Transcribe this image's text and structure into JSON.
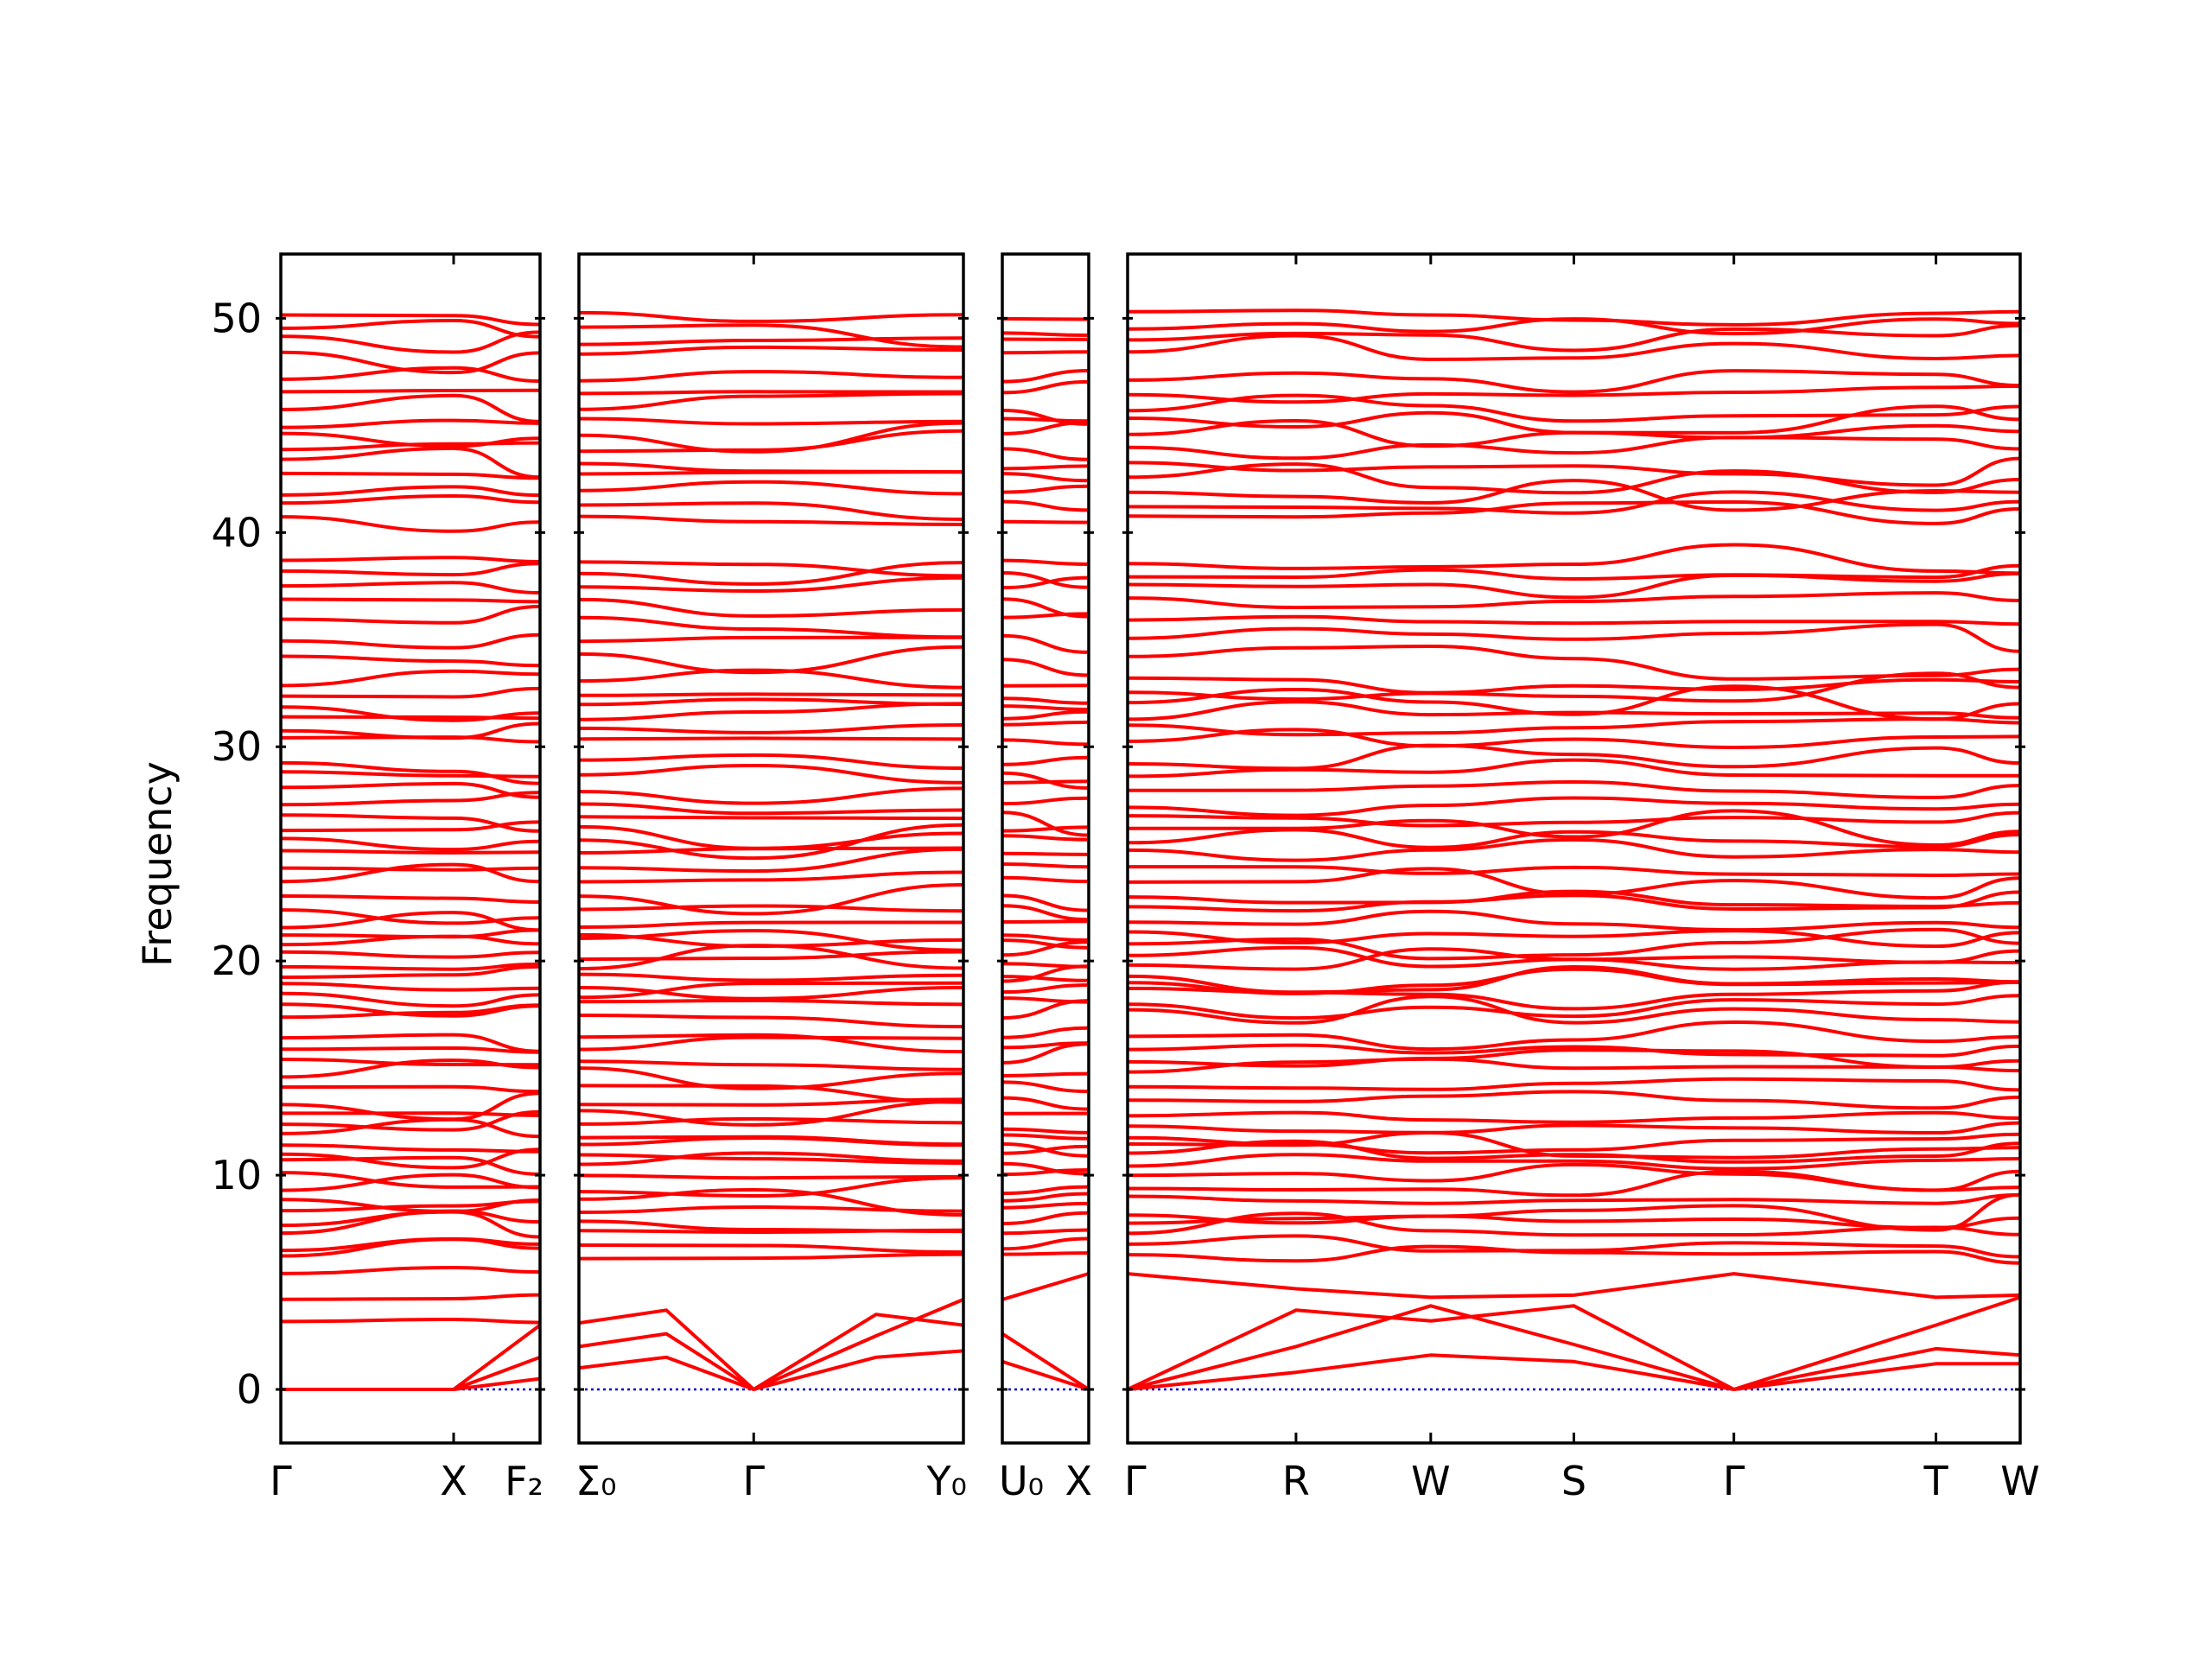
{
  "chart_data": {
    "type": "line",
    "title": "",
    "xlabel": "",
    "ylabel": "Frequency",
    "ylim": [
      -2.5,
      53
    ],
    "y_ticks": [
      0,
      10,
      20,
      30,
      40,
      50
    ],
    "grid": false,
    "colors": {
      "bands": "#ff0000",
      "zero_line": "#0000cc",
      "frame": "#000000"
    },
    "panels": [
      {
        "name": "segment-1",
        "labels": [
          "Γ",
          "X",
          "F₂"
        ],
        "label_positions": [
          0,
          1,
          1.5
        ]
      },
      {
        "name": "segment-2",
        "labels": [
          "Σ₀",
          "Γ",
          "Y₀"
        ],
        "label_positions": [
          0,
          1,
          2.2
        ]
      },
      {
        "name": "segment-3",
        "labels": [
          "U₀",
          "X"
        ],
        "label_positions": [
          0,
          1
        ]
      },
      {
        "name": "segment-4",
        "labels": [
          "Γ",
          "R",
          "W",
          "S",
          "Γ",
          "T",
          "W"
        ],
        "label_positions": [
          0,
          1,
          1.8,
          2.65,
          3.6,
          4.8,
          5.3
        ]
      }
    ],
    "flat_modes": [
      1.2,
      3.1,
      4.2,
      5.4,
      6.3,
      6.6,
      7.4,
      7.8,
      8.3,
      8.9,
      9.3,
      10.0,
      10.6,
      11.0,
      11.4,
      11.8,
      12.3,
      12.8,
      13.4,
      14.2,
      14.8,
      15.3,
      15.9,
      16.4,
      17.6,
      18.0,
      18.5,
      18.9,
      19.3,
      19.8,
      20.3,
      20.8,
      21.3,
      21.8,
      22.5,
      23.0,
      23.7,
      24.4,
      25.0,
      25.6,
      26.1,
      26.7,
      27.3,
      28.1,
      28.7,
      29.3,
      30.3,
      30.9,
      31.4,
      31.9,
      32.4,
      33.0,
      34.1,
      35.0,
      35.9,
      36.9,
      37.5,
      38.0,
      38.6,
      40.7,
      41.3,
      41.9,
      42.6,
      43.2,
      43.9,
      44.6,
      45.2,
      45.8,
      46.5,
      47.2,
      48.4,
      49.0,
      49.5,
      50.2
    ],
    "acoustic_branches": [
      {
        "panel": 0,
        "points": [
          [
            0,
            0
          ],
          [
            1,
            0
          ],
          [
            1.5,
            3.0
          ]
        ]
      },
      {
        "panel": 0,
        "points": [
          [
            0,
            0
          ],
          [
            1,
            0
          ],
          [
            1.5,
            1.5
          ]
        ]
      },
      {
        "panel": 0,
        "points": [
          [
            0,
            0
          ],
          [
            1,
            0
          ],
          [
            1.5,
            0.5
          ]
        ]
      },
      {
        "panel": 1,
        "points": [
          [
            0,
            3.1
          ],
          [
            0.5,
            3.7
          ],
          [
            1,
            0
          ],
          [
            1.7,
            2.5
          ],
          [
            2.2,
            4.2
          ]
        ]
      },
      {
        "panel": 1,
        "points": [
          [
            0,
            2.0
          ],
          [
            0.5,
            2.6
          ],
          [
            1,
            0
          ],
          [
            1.7,
            3.5
          ],
          [
            2.2,
            3.0
          ]
        ]
      },
      {
        "panel": 1,
        "points": [
          [
            0,
            1.0
          ],
          [
            0.5,
            1.5
          ],
          [
            1,
            0
          ],
          [
            1.7,
            1.5
          ],
          [
            2.2,
            1.8
          ]
        ]
      },
      {
        "panel": 2,
        "points": [
          [
            0,
            2.6
          ],
          [
            1,
            0
          ]
        ]
      },
      {
        "panel": 2,
        "points": [
          [
            0,
            1.3
          ],
          [
            1,
            0
          ]
        ]
      },
      {
        "panel": 2,
        "points": [
          [
            0,
            4.2
          ],
          [
            1,
            5.4
          ]
        ]
      },
      {
        "panel": 3,
        "points": [
          [
            0,
            0
          ],
          [
            1,
            3.7
          ],
          [
            1.8,
            3.2
          ],
          [
            2.65,
            3.9
          ],
          [
            3.6,
            0
          ],
          [
            4.8,
            3.0
          ],
          [
            5.3,
            4.3
          ]
        ]
      },
      {
        "panel": 3,
        "points": [
          [
            0,
            0
          ],
          [
            1,
            2.0
          ],
          [
            1.8,
            3.9
          ],
          [
            2.65,
            2.1
          ],
          [
            3.6,
            0
          ],
          [
            4.8,
            1.9
          ],
          [
            5.3,
            1.6
          ]
        ]
      },
      {
        "panel": 3,
        "points": [
          [
            0,
            0
          ],
          [
            1,
            0.8
          ],
          [
            1.8,
            1.6
          ],
          [
            2.65,
            1.3
          ],
          [
            3.6,
            0
          ],
          [
            4.8,
            1.2
          ],
          [
            5.3,
            1.2
          ]
        ]
      },
      {
        "panel": 3,
        "points": [
          [
            0,
            5.4
          ],
          [
            1,
            4.7
          ],
          [
            1.8,
            4.3
          ],
          [
            2.65,
            4.4
          ],
          [
            3.6,
            5.4
          ],
          [
            4.8,
            4.3
          ],
          [
            5.3,
            4.4
          ]
        ]
      }
    ]
  }
}
